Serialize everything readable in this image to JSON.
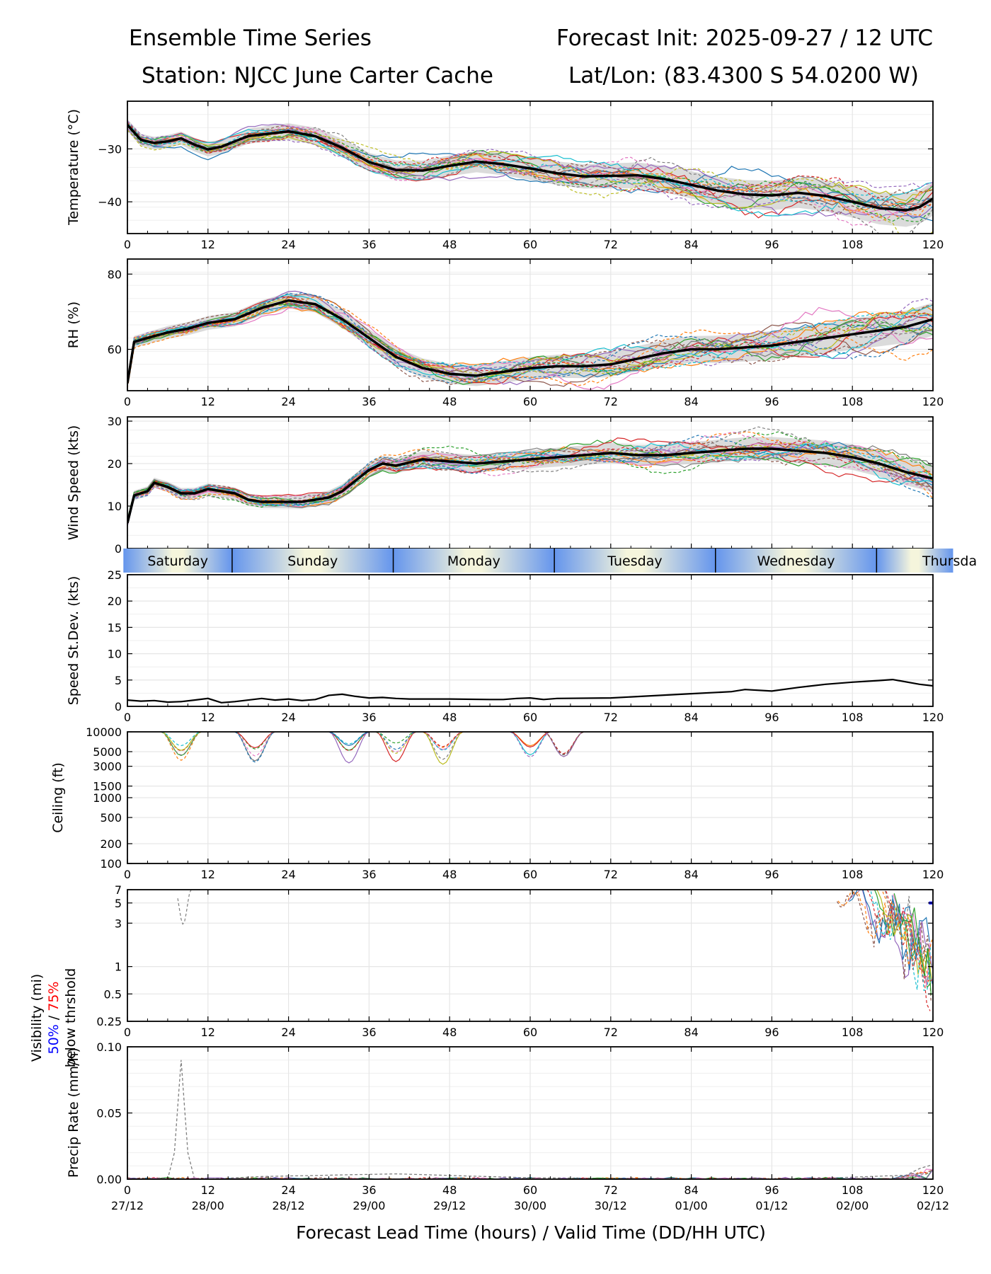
{
  "header": {
    "title_left": "Ensemble Time Series",
    "title_right": "Forecast Init: 2025-09-27 / 12 UTC",
    "station": "Station: NJCC June Carter Cache",
    "latlon": "Lat/Lon: (83.4300 S 54.0200 W)"
  },
  "chart_data": [
    {
      "type": "line",
      "id": "temperature",
      "ylabel": "Temperature (°C)",
      "ylim": [
        -46,
        -21
      ],
      "yticks": [
        -30,
        -40
      ],
      "ytick_labels": [
        "−30",
        "−40"
      ],
      "x": [
        0,
        2,
        4,
        6,
        8,
        10,
        12,
        14,
        16,
        18,
        20,
        24,
        28,
        32,
        36,
        40,
        44,
        48,
        52,
        56,
        60,
        64,
        68,
        72,
        76,
        80,
        84,
        88,
        92,
        96,
        100,
        104,
        108,
        112,
        116,
        118,
        120
      ],
      "series": [
        {
          "name": "ensemble mean",
          "values": [
            -25.5,
            -28.3,
            -28.9,
            -28.6,
            -28.0,
            -29.2,
            -30.1,
            -29.6,
            -28.6,
            -27.6,
            -27.3,
            -26.7,
            -27.6,
            -29.8,
            -32.5,
            -34.0,
            -34.1,
            -33.2,
            -32.4,
            -32.9,
            -33.7,
            -34.6,
            -35.2,
            -35.1,
            -35.0,
            -35.7,
            -36.8,
            -37.9,
            -38.6,
            -38.8,
            -38.3,
            -38.9,
            -40.0,
            -41.2,
            -41.6,
            -41.0,
            -39.4
          ]
        }
      ]
    },
    {
      "type": "line",
      "id": "rh",
      "ylabel": "RH (%)",
      "ylim": [
        49,
        84
      ],
      "yticks": [
        60,
        80
      ],
      "ytick_labels": [
        "60",
        "80"
      ],
      "x": [
        0,
        1,
        3,
        6,
        9,
        12,
        16,
        20,
        24,
        28,
        32,
        36,
        40,
        44,
        48,
        52,
        56,
        60,
        64,
        68,
        72,
        76,
        80,
        84,
        88,
        92,
        96,
        100,
        104,
        108,
        112,
        116,
        120
      ],
      "series": [
        {
          "name": "ensemble mean",
          "values": [
            51,
            62,
            63,
            64.5,
            65.5,
            67,
            68,
            71,
            73,
            72,
            68,
            63,
            58,
            55,
            53.5,
            53,
            54,
            55,
            55.5,
            55.5,
            56,
            57.5,
            59,
            60,
            60,
            60.5,
            61,
            62,
            63,
            64,
            65,
            66,
            68
          ]
        }
      ]
    },
    {
      "type": "line",
      "id": "wind_speed",
      "ylabel": "Wind Speed (kts)",
      "ylim": [
        0,
        31
      ],
      "yticks": [
        0,
        10,
        20,
        30
      ],
      "ytick_labels": [
        "0",
        "10",
        "20",
        "30"
      ],
      "x": [
        0,
        1,
        3,
        4,
        6,
        8,
        10,
        12,
        14,
        16,
        18,
        20,
        22,
        24,
        26,
        28,
        30,
        32,
        34,
        36,
        38,
        40,
        44,
        48,
        52,
        56,
        60,
        64,
        68,
        72,
        76,
        80,
        84,
        88,
        92,
        96,
        100,
        104,
        108,
        112,
        116,
        120
      ],
      "series": [
        {
          "name": "ensemble mean",
          "values": [
            6,
            12.5,
            13.5,
            15.5,
            14.5,
            13,
            13,
            14,
            13.5,
            13,
            11.5,
            11,
            11,
            11,
            11,
            11.5,
            12,
            13.5,
            16,
            18.5,
            20,
            19.5,
            21,
            20.5,
            20,
            20.5,
            21,
            21.5,
            22,
            22.5,
            22,
            22,
            22.5,
            23,
            23.5,
            23.5,
            23,
            22.5,
            21.5,
            20,
            18,
            16.5
          ]
        }
      ]
    },
    {
      "type": "line",
      "id": "speed_stdev",
      "ylabel": "Speed St.Dev. (kts)",
      "ylim": [
        0,
        25
      ],
      "yticks": [
        0,
        5,
        10,
        15,
        20,
        25
      ],
      "ytick_labels": [
        "0",
        "5",
        "10",
        "15",
        "20",
        "25"
      ],
      "x": [
        0,
        2,
        4,
        6,
        8,
        10,
        12,
        14,
        16,
        20,
        22,
        24,
        26,
        28,
        30,
        32,
        34,
        36,
        38,
        40,
        42,
        48,
        54,
        56,
        58,
        60,
        62,
        64,
        72,
        78,
        84,
        90,
        92,
        96,
        100,
        104,
        108,
        112,
        114,
        118,
        120
      ],
      "series": [
        {
          "name": "std dev",
          "values": [
            1.2,
            1.0,
            1.1,
            0.8,
            0.9,
            1.2,
            1.5,
            0.7,
            0.9,
            1.5,
            1.2,
            1.4,
            1.1,
            1.3,
            2.1,
            2.3,
            1.9,
            1.6,
            1.7,
            1.5,
            1.4,
            1.4,
            1.3,
            1.3,
            1.5,
            1.6,
            1.3,
            1.5,
            1.6,
            2.0,
            2.4,
            2.8,
            3.2,
            2.9,
            3.6,
            4.2,
            4.6,
            4.9,
            5.1,
            4.2,
            3.9
          ]
        }
      ]
    },
    {
      "type": "line",
      "id": "ceiling",
      "ylabel": "Ceiling (ft)",
      "yscale": "log",
      "ylim": [
        100,
        10000
      ],
      "ytick_labels": [
        "100",
        "200",
        "500",
        "1000",
        "1500",
        "3000",
        "5000",
        "10000"
      ],
      "ytick_values": [
        100,
        200,
        500,
        1000,
        1500,
        3000,
        5000,
        10000
      ]
    },
    {
      "type": "line",
      "id": "visibility",
      "ylabel": "Visibility (mi)",
      "ylabel_line2": "below thrshold",
      "threshold_50": "50%",
      "threshold_sep": " / ",
      "threshold_75": "75%",
      "yscale": "log",
      "ylim": [
        0.25,
        7
      ],
      "ytick_labels": [
        "0.25",
        "0.5",
        "1",
        "3",
        "5",
        "7"
      ],
      "ytick_values": [
        0.25,
        0.5,
        1,
        3,
        5,
        7
      ]
    },
    {
      "type": "line",
      "id": "precip",
      "ylabel": "Precip Rate (mm/h)",
      "ylim": [
        0,
        0.1
      ],
      "yticks": [
        0,
        0.05,
        0.1
      ],
      "ytick_labels": [
        "0.00",
        "0.05",
        "0.10"
      ],
      "x": [
        0,
        6,
        7,
        8,
        9,
        10,
        12,
        20,
        40,
        60,
        100,
        116,
        118,
        120
      ],
      "series": [
        {
          "name": "member max",
          "values": [
            0.0,
            0.0,
            0.02,
            0.09,
            0.02,
            0.0,
            0.0,
            0.002,
            0.004,
            0.001,
            0.0,
            0.003,
            0.008,
            0.011
          ]
        }
      ]
    }
  ],
  "x_axis": {
    "xlim": [
      0,
      120
    ],
    "ticks": [
      0,
      12,
      24,
      36,
      48,
      60,
      72,
      84,
      96,
      108,
      120
    ],
    "tick_labels": [
      "0",
      "12",
      "24",
      "36",
      "48",
      "60",
      "72",
      "84",
      "96",
      "108",
      "120"
    ],
    "valid_time_labels": [
      "27/12",
      "28/00",
      "28/12",
      "29/00",
      "29/12",
      "30/00",
      "30/12",
      "01/00",
      "01/12",
      "02/00",
      "02/12"
    ],
    "label": "Forecast Lead Time (hours) / Valid Time (DD/HH UTC)"
  },
  "day_strip": {
    "days": [
      "Saturday",
      "Sunday",
      "Monday",
      "Tuesday",
      "Wednesday",
      "Thursda"
    ],
    "boundaries_hours": [
      15.6,
      39.6,
      63.6,
      87.6,
      111.6
    ]
  },
  "colors": {
    "mean_line": "#000000",
    "spread_band": "#cccccc",
    "grid": "#e6e6e6",
    "day_light": "#f5f5dc",
    "day_blue": "#6495ed",
    "threshold_50": "#0000ff",
    "threshold_75": "#ff0000",
    "members": [
      "#1f77b4",
      "#ff7f0e",
      "#2ca02c",
      "#d62728",
      "#9467bd",
      "#8c564b",
      "#e377c2",
      "#7f7f7f",
      "#bcbd22",
      "#17becf"
    ]
  }
}
